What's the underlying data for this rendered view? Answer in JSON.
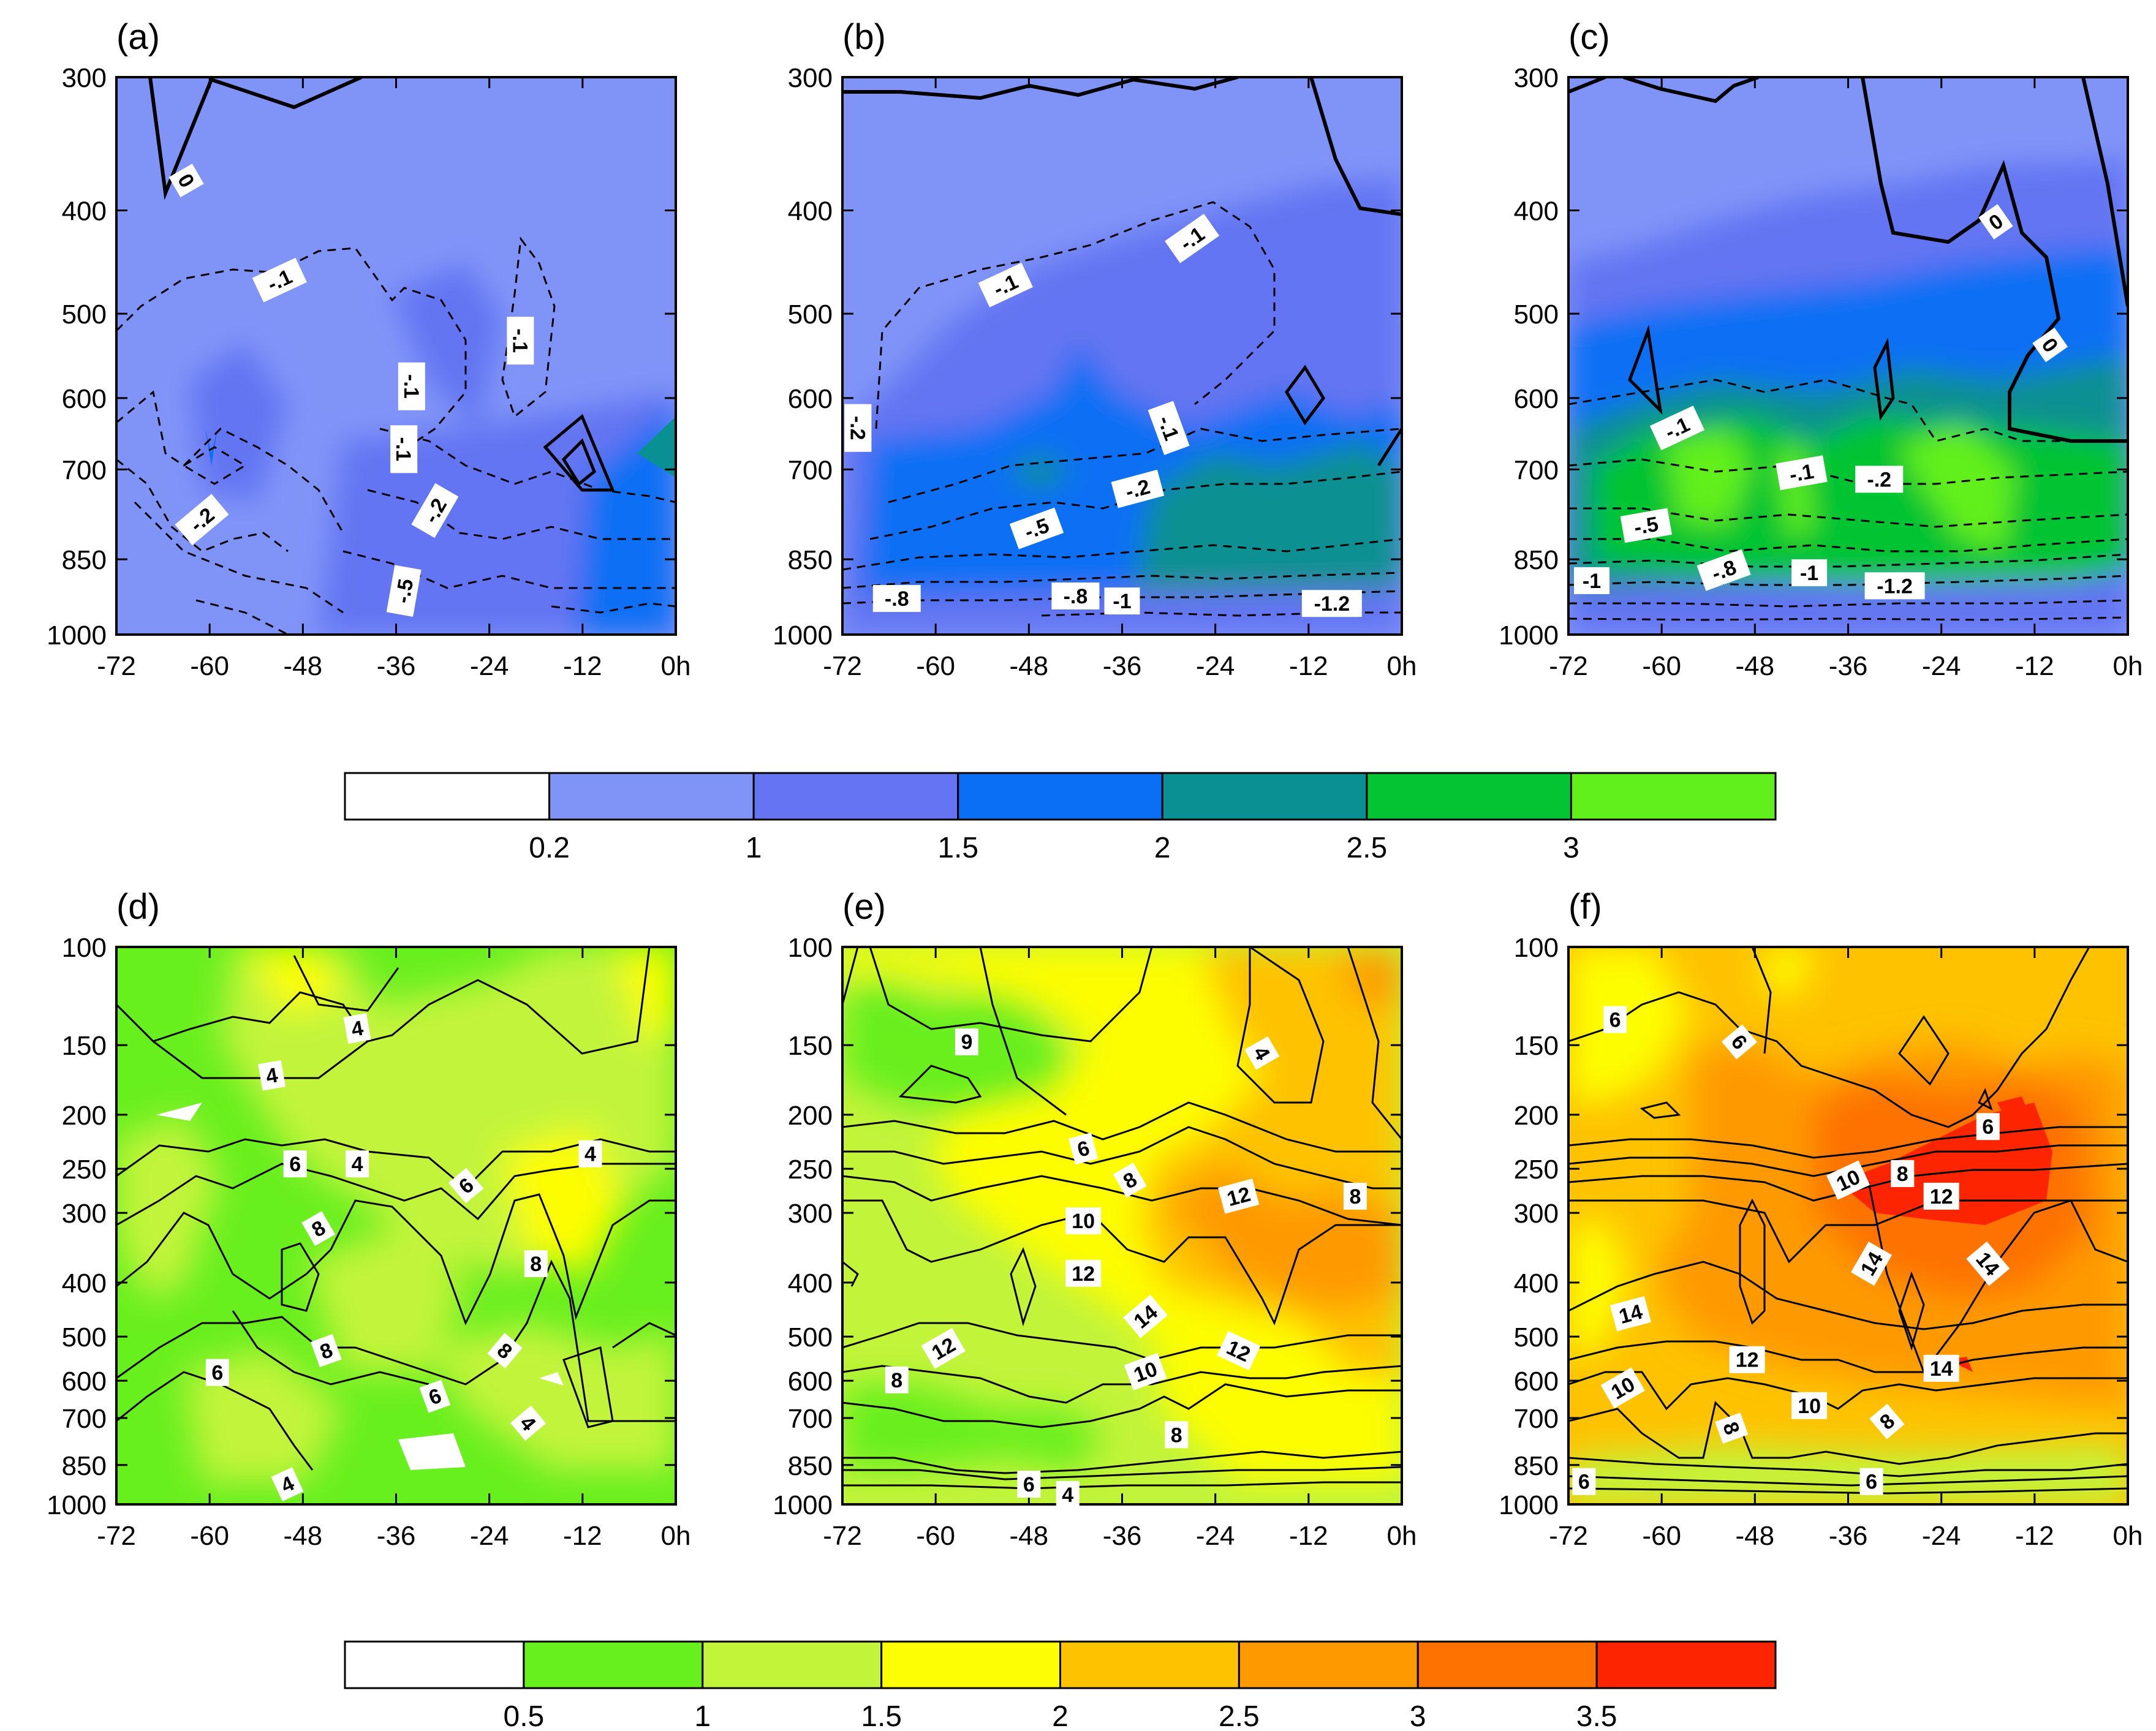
{
  "chart_data": {
    "type": "contour",
    "x": {
      "tick_values": [
        -72,
        -60,
        -48,
        -36,
        -24,
        -12,
        0
      ],
      "tick_labels": [
        "-72",
        "-60",
        "-48",
        "-36",
        "-24",
        "-12",
        "0h"
      ],
      "range": [
        -72,
        0
      ]
    },
    "row_top": {
      "y_ticks": [
        "300",
        "400",
        "500",
        "600",
        "700",
        "850",
        "1000"
      ],
      "y_range": [
        300,
        1000
      ],
      "colorbar": {
        "labels": [
          "0.2",
          "1",
          "1.5",
          "2",
          "2.5",
          "3"
        ],
        "colors": [
          "#ffffff",
          "#8094f8",
          "#6474f2",
          "#0a6ff4",
          "#099092",
          "#05c433",
          "#62f01d"
        ]
      }
    },
    "row_bottom": {
      "y_ticks": [
        "100",
        "150",
        "200",
        "250",
        "300",
        "400",
        "500",
        "600",
        "700",
        "850",
        "1000"
      ],
      "y_range": [
        100,
        1000
      ],
      "colorbar": {
        "labels": [
          "0.5",
          "1",
          "1.5",
          "2",
          "2.5",
          "3",
          "3.5"
        ],
        "colors": [
          "#ffffff",
          "#68ef1e",
          "#c2f43a",
          "#fdfd03",
          "#fec200",
          "#fe9a00",
          "#fd7200",
          "#fd2401"
        ]
      }
    },
    "panels": [
      {
        "title": "(a)",
        "row": "top",
        "labels": [
          {
            "text": "0",
            "x": -63,
            "y": 375,
            "rot": 60
          },
          {
            "text": "-.1",
            "x": -51,
            "y": 465,
            "rot": -25
          },
          {
            "text": "-.1",
            "x": -20,
            "y": 530,
            "rot": 90
          },
          {
            "text": "-.1",
            "x": -34,
            "y": 585,
            "rot": 90
          },
          {
            "text": "-.1",
            "x": -35,
            "y": 670,
            "rot": 90
          },
          {
            "text": "-.2",
            "x": -61,
            "y": 780,
            "rot": -40
          },
          {
            "text": "-.2",
            "x": -31,
            "y": 765,
            "rot": -60
          },
          {
            "text": "-.5",
            "x": -35,
            "y": 910,
            "rot": -80
          }
        ]
      },
      {
        "title": "(b)",
        "row": "top",
        "labels": [
          {
            "text": "-.1",
            "x": -27,
            "y": 425,
            "rot": -35
          },
          {
            "text": "-.1",
            "x": -51,
            "y": 470,
            "rot": -25
          },
          {
            "text": "-.2",
            "x": -70,
            "y": 640,
            "rot": 90
          },
          {
            "text": "-.1",
            "x": -30,
            "y": 640,
            "rot": 70
          },
          {
            "text": "-.2",
            "x": -34,
            "y": 730,
            "rot": -15
          },
          {
            "text": "-.5",
            "x": -47,
            "y": 795,
            "rot": -20
          },
          {
            "text": "-.8",
            "x": -65,
            "y": 925,
            "rot": 0
          },
          {
            "text": "-.8",
            "x": -42,
            "y": 920,
            "rot": 0
          },
          {
            "text": "-1",
            "x": -36,
            "y": 930,
            "rot": 0
          },
          {
            "text": "-1.2",
            "x": -9,
            "y": 935,
            "rot": 0
          }
        ]
      },
      {
        "title": "(c)",
        "row": "top",
        "labels": [
          {
            "text": "0",
            "x": -17,
            "y": 410,
            "rot": -35
          },
          {
            "text": "0",
            "x": -10,
            "y": 535,
            "rot": 55
          },
          {
            "text": "-.1",
            "x": -58,
            "y": 640,
            "rot": -25
          },
          {
            "text": "-.1",
            "x": -42,
            "y": 705,
            "rot": -10
          },
          {
            "text": "-.2",
            "x": -32,
            "y": 715,
            "rot": 0
          },
          {
            "text": "-.5",
            "x": -62,
            "y": 790,
            "rot": -10
          },
          {
            "text": "-.8",
            "x": -52,
            "y": 870,
            "rot": -20
          },
          {
            "text": "-1",
            "x": -41,
            "y": 875,
            "rot": 0
          },
          {
            "text": "-1.2",
            "x": -30,
            "y": 900,
            "rot": 0
          },
          {
            "text": "-1",
            "x": -69,
            "y": 890,
            "rot": 0
          }
        ]
      },
      {
        "title": "(d)",
        "row": "bottom",
        "labels": [
          {
            "text": "4",
            "x": -41,
            "y": 140,
            "rot": -10
          },
          {
            "text": "4",
            "x": -52,
            "y": 170,
            "rot": -10
          },
          {
            "text": "6",
            "x": -49,
            "y": 245,
            "rot": 0
          },
          {
            "text": "4",
            "x": -41,
            "y": 245,
            "rot": 0
          },
          {
            "text": "6",
            "x": -27,
            "y": 268,
            "rot": -40
          },
          {
            "text": "4",
            "x": -11,
            "y": 235,
            "rot": 0
          },
          {
            "text": "8",
            "x": -46,
            "y": 320,
            "rot": -30
          },
          {
            "text": "8",
            "x": -18,
            "y": 370,
            "rot": 0
          },
          {
            "text": "8",
            "x": -45,
            "y": 530,
            "rot": -20
          },
          {
            "text": "8",
            "x": -22,
            "y": 530,
            "rot": 40
          },
          {
            "text": "6",
            "x": -59,
            "y": 580,
            "rot": 0
          },
          {
            "text": "6",
            "x": -31,
            "y": 640,
            "rot": -20
          },
          {
            "text": "4",
            "x": -19,
            "y": 715,
            "rot": 50
          },
          {
            "text": "4",
            "x": -50,
            "y": 920,
            "rot": -25
          }
        ]
      },
      {
        "title": "(e)",
        "row": "bottom",
        "labels": [
          {
            "text": "6",
            "x": -56,
            "y": 148,
            "rot": 180
          },
          {
            "text": "4",
            "x": -18,
            "y": 155,
            "rot": 60
          },
          {
            "text": "6",
            "x": -41,
            "y": 230,
            "rot": -15
          },
          {
            "text": "8",
            "x": -35,
            "y": 262,
            "rot": -30
          },
          {
            "text": "12",
            "x": -21,
            "y": 280,
            "rot": -15
          },
          {
            "text": "8",
            "x": -6,
            "y": 280,
            "rot": 0
          },
          {
            "text": "10",
            "x": -41,
            "y": 310,
            "rot": 0
          },
          {
            "text": "12",
            "x": -41,
            "y": 385,
            "rot": 0
          },
          {
            "text": "14",
            "x": -33,
            "y": 460,
            "rot": -40
          },
          {
            "text": "12",
            "x": -59,
            "y": 525,
            "rot": -30
          },
          {
            "text": "12",
            "x": -21,
            "y": 530,
            "rot": 25
          },
          {
            "text": "10",
            "x": -33,
            "y": 578,
            "rot": -20
          },
          {
            "text": "8",
            "x": -65,
            "y": 598,
            "rot": 0
          },
          {
            "text": "8",
            "x": -29,
            "y": 750,
            "rot": 0
          },
          {
            "text": "6",
            "x": -48,
            "y": 920,
            "rot": 0
          },
          {
            "text": "4",
            "x": -43,
            "y": 960,
            "rot": 0
          }
        ]
      },
      {
        "title": "(f)",
        "row": "bottom",
        "labels": [
          {
            "text": "6",
            "x": -66,
            "y": 135,
            "rot": 0
          },
          {
            "text": "6",
            "x": -50,
            "y": 148,
            "rot": 50
          },
          {
            "text": "6",
            "x": -18,
            "y": 210,
            "rot": 0
          },
          {
            "text": "10",
            "x": -36,
            "y": 262,
            "rot": -25
          },
          {
            "text": "8",
            "x": -29,
            "y": 255,
            "rot": 0
          },
          {
            "text": "12",
            "x": -24,
            "y": 280,
            "rot": 0
          },
          {
            "text": "14",
            "x": -33,
            "y": 370,
            "rot": -60
          },
          {
            "text": "14",
            "x": -18,
            "y": 370,
            "rot": 50
          },
          {
            "text": "14",
            "x": -64,
            "y": 455,
            "rot": -15
          },
          {
            "text": "12",
            "x": -49,
            "y": 550,
            "rot": 0
          },
          {
            "text": "14",
            "x": -24,
            "y": 570,
            "rot": 0
          },
          {
            "text": "10",
            "x": -65,
            "y": 618,
            "rot": -30
          },
          {
            "text": "10",
            "x": -41,
            "y": 665,
            "rot": 0
          },
          {
            "text": "8",
            "x": -51,
            "y": 730,
            "rot": 70
          },
          {
            "text": "8",
            "x": -31,
            "y": 710,
            "rot": -40
          },
          {
            "text": "6",
            "x": -70,
            "y": 910,
            "rot": 0
          },
          {
            "text": "6",
            "x": -33,
            "y": 910,
            "rot": 0
          }
        ]
      }
    ]
  }
}
